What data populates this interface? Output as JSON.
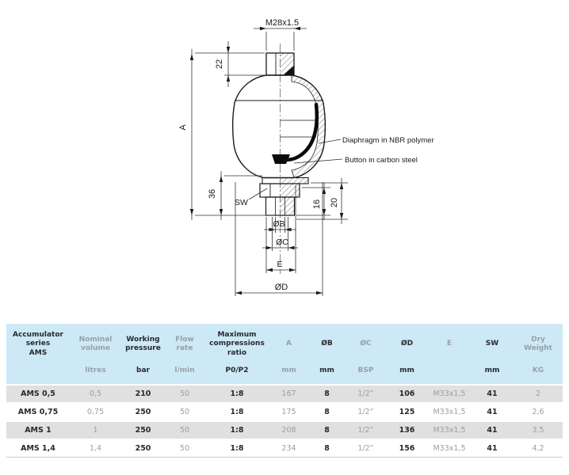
{
  "drawing": {
    "dims": {
      "thread_top": "M28x1.5",
      "d22": "22",
      "dA": "A",
      "d36": "36",
      "sw": "SW",
      "d16": "16",
      "d20": "20",
      "dB": "ØB",
      "dC": "ØC",
      "dE": "E",
      "dD": "ØD"
    },
    "annotations": {
      "diaphragm": "Diaphragm in NBR polymer",
      "button": "Button in carbon steel"
    }
  },
  "table": {
    "columns": [
      {
        "label": "Accumulator\nseries\nAMS",
        "unit": "",
        "tone": "dark"
      },
      {
        "label": "Nominal\nvolume",
        "unit": "litres",
        "tone": "grey"
      },
      {
        "label": "Working\npressure",
        "unit": "bar",
        "tone": "dark"
      },
      {
        "label": "Flow\nrate",
        "unit": "l/min",
        "tone": "grey"
      },
      {
        "label": "Maximum\ncompressions\nratio",
        "unit": "P0/P2",
        "tone": "dark"
      },
      {
        "label": "A",
        "unit": "mm",
        "tone": "grey"
      },
      {
        "label": "ØB",
        "unit": "mm",
        "tone": "dark"
      },
      {
        "label": "ØC",
        "unit": "BSP",
        "tone": "grey"
      },
      {
        "label": "ØD",
        "unit": "mm",
        "tone": "dark"
      },
      {
        "label": "E",
        "unit": "",
        "tone": "grey"
      },
      {
        "label": "SW",
        "unit": "mm",
        "tone": "dark"
      },
      {
        "label": "Dry\nWeight",
        "unit": "KG",
        "tone": "grey"
      }
    ],
    "rows": [
      [
        "AMS 0,5",
        "0,5",
        "210",
        "50",
        "1:8",
        "167",
        "8",
        "1/2”",
        "106",
        "M33x1,5",
        "41",
        "2"
      ],
      [
        "AMS 0,75",
        "0,75",
        "250",
        "50",
        "1:8",
        "175",
        "8",
        "1/2”",
        "125",
        "M33x1,5",
        "41",
        "2,6"
      ],
      [
        "AMS 1",
        "1",
        "250",
        "50",
        "1:8",
        "208",
        "8",
        "1/2”",
        "136",
        "M33x1,5",
        "41",
        "3,5"
      ],
      [
        "AMS 1,4",
        "1,4",
        "250",
        "50",
        "1:8",
        "234",
        "8",
        "1/2”",
        "156",
        "M33x1,5",
        "41",
        "4,2"
      ]
    ]
  },
  "colors": {
    "header_bg": "#cee9f6",
    "stripe_bg": "#e0e0e0",
    "dark_text": "#26292e",
    "grey_text": "#98a0a6",
    "line": "#1a1a1a"
  }
}
